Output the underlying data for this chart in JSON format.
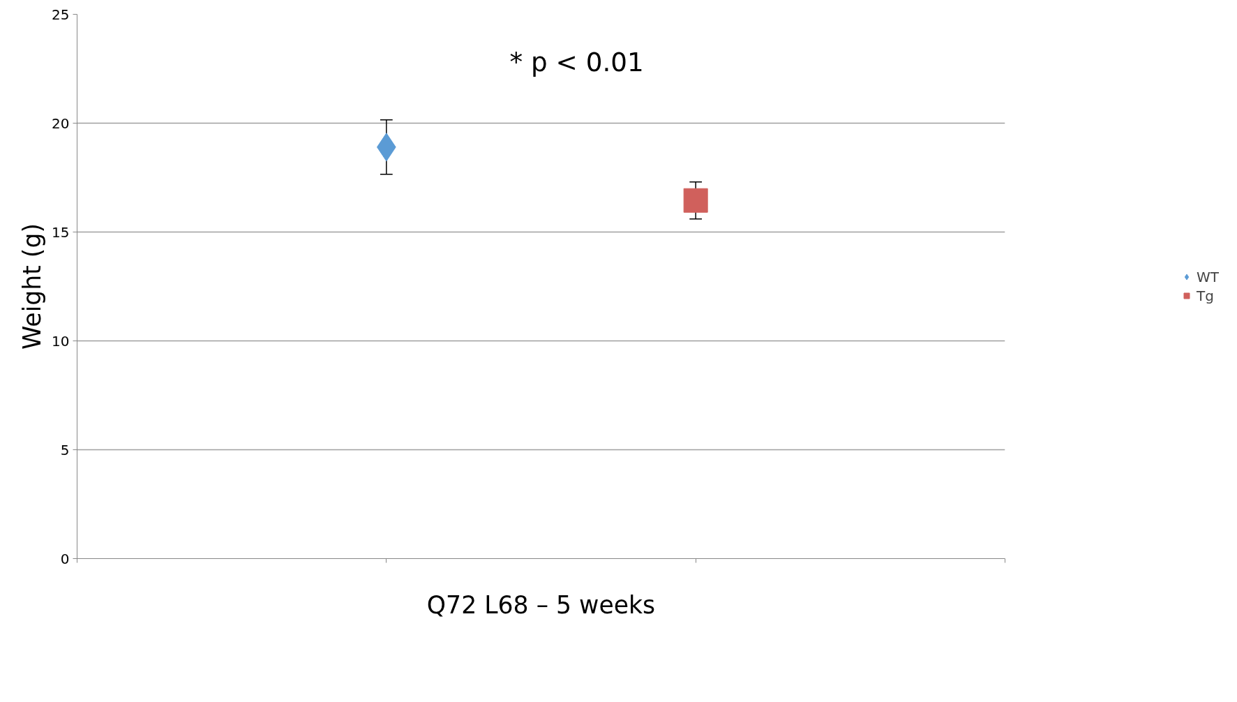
{
  "chart_data": {
    "type": "scatter",
    "xlabel": "Q72 L68 – 5 weeks",
    "ylabel": "Weight (g)",
    "categories": [
      null,
      null
    ],
    "ylim": [
      0,
      25
    ],
    "yticks": [
      0,
      5,
      10,
      15,
      20,
      25
    ],
    "grid": "y",
    "tick_labels": "y",
    "legend": "right",
    "annotations": [
      "* p < 0.01"
    ],
    "series": [
      {
        "name": "WT",
        "color": "#5b9bd5",
        "marker": "diamond",
        "values": [
          18.9,
          null
        ],
        "errors": [
          1.25,
          null
        ]
      },
      {
        "name": "Tg",
        "color": "#d0605c",
        "marker": "square",
        "values": [
          null,
          16.45
        ],
        "errors": [
          null,
          0.85
        ]
      }
    ]
  }
}
